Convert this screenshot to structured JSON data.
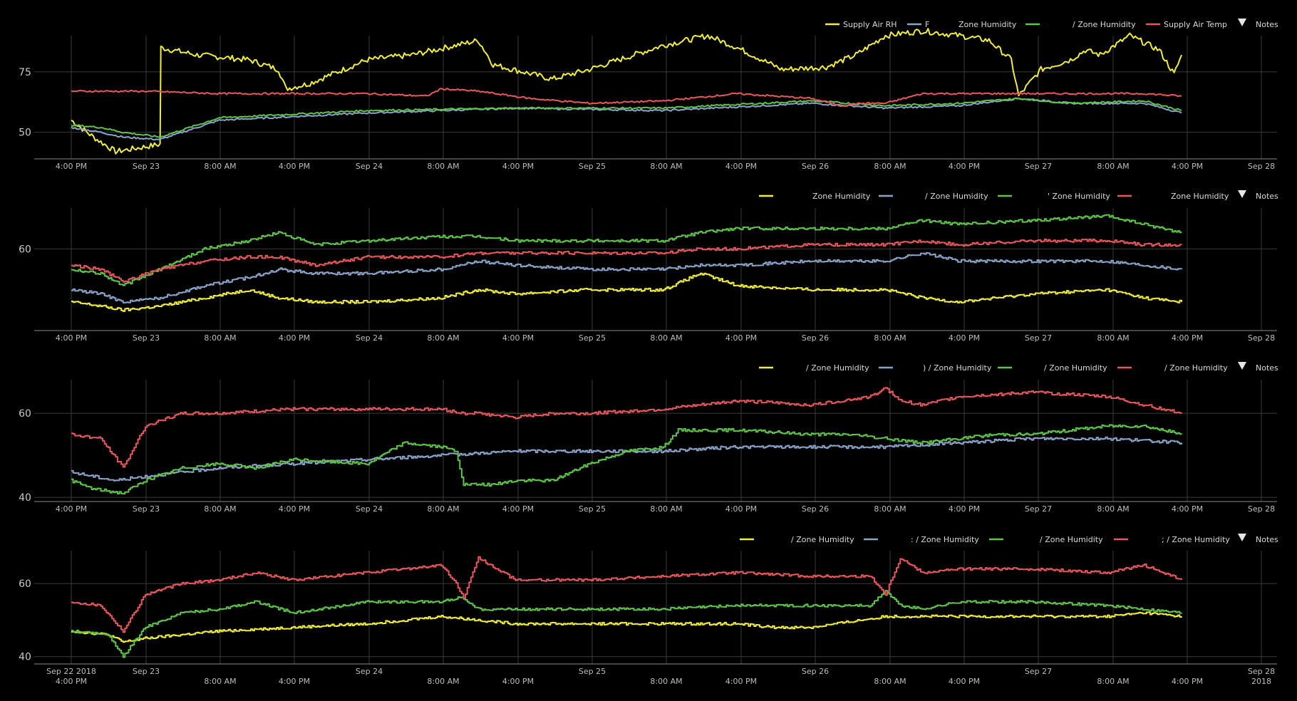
{
  "colors": {
    "background": "#000000",
    "grid": "#3a3a3a",
    "axis": "#8a8a8a",
    "yellow": "#f0ee3a",
    "blue": "#8aa3c8",
    "green": "#5fc44a",
    "red": "#e8575c",
    "text": "#d9d9d9"
  },
  "notes_label": "Notes",
  "x_ticks": {
    "top": [
      "4:00 PM",
      "Sep 23",
      "8:00 AM",
      "4:00 PM",
      "Sep 24",
      "8:00 AM",
      "4:00 PM",
      "Sep 25",
      "8:00 AM",
      "4:00 PM",
      "Sep 26",
      "8:00 AM",
      "4:00 PM",
      "Sep 27",
      "8:00 AM",
      "4:00 PM",
      "Sep 28"
    ],
    "bottom_line1": [
      "Sep 22 2018",
      "Sep 23",
      "",
      "",
      "Sep 24",
      "",
      "",
      "Sep 25",
      "",
      "",
      "Sep 26",
      "",
      "",
      "Sep 27",
      "",
      "",
      "Sep 28"
    ],
    "bottom_line2": [
      "4:00 PM",
      "",
      "8:00 AM",
      "4:00 PM",
      "",
      "8:00 AM",
      "4:00 PM",
      "",
      "8:00 AM",
      "4:00 PM",
      "",
      "8:00 AM",
      "4:00 PM",
      "",
      "8:00 AM",
      "4:00 PM",
      "2018"
    ]
  },
  "chart_data": [
    {
      "type": "line",
      "x_range": [
        "2018-09-22 13:00",
        "2018-09-28 00:00"
      ],
      "ylim": [
        39,
        90
      ],
      "yticks": [
        50,
        75
      ],
      "grid": true,
      "legend_position": "top-right",
      "legend": [
        {
          "color": "yellow",
          "label": "Supply Air RH"
        },
        {
          "color": "blue",
          "label": "F"
        },
        {
          "color": "",
          "label": "Zone Humidity"
        },
        {
          "color": "green",
          "label": ""
        },
        {
          "color": "",
          "label": "/ Zone Humidity"
        },
        {
          "color": "red",
          "label": "Supply Air Temp"
        }
      ],
      "series": [
        {
          "color": "yellow",
          "x": [
            0,
            3,
            6,
            12,
            12.1,
            17,
            24,
            28,
            29,
            32,
            40,
            46,
            55,
            57,
            65,
            70,
            80,
            86,
            90,
            96,
            102,
            106,
            108,
            110,
            115,
            120,
            124,
            127,
            128,
            131,
            135,
            137,
            139,
            142,
            143,
            147,
            149,
            150
          ],
          "y": [
            55,
            48,
            42,
            45,
            85,
            82,
            80,
            76,
            68,
            70,
            80,
            82,
            88,
            78,
            72,
            76,
            86,
            90,
            85,
            76,
            77,
            82,
            86,
            90,
            92,
            90,
            88,
            80,
            65,
            76,
            80,
            84,
            82,
            88,
            90,
            84,
            74,
            82
          ]
        },
        {
          "color": "blue",
          "x": [
            0,
            4,
            7,
            12,
            20,
            40,
            60,
            80,
            100,
            110,
            120,
            128,
            135,
            145,
            150
          ],
          "y": [
            52,
            50,
            48,
            47,
            55,
            58,
            60,
            59,
            62,
            60,
            61,
            64,
            62,
            62,
            58
          ]
        },
        {
          "color": "green",
          "x": [
            0,
            4,
            7,
            12,
            20,
            40,
            60,
            80,
            100,
            110,
            120,
            128,
            135,
            145,
            150
          ],
          "y": [
            53,
            52,
            50,
            48,
            56,
            59,
            60,
            60,
            63,
            61,
            62,
            64,
            62,
            63,
            59
          ]
        },
        {
          "color": "red",
          "x": [
            0,
            10,
            20,
            40,
            48,
            50,
            55,
            62,
            70,
            80,
            90,
            100,
            104,
            107,
            110,
            115,
            120,
            128,
            135,
            145,
            150
          ],
          "y": [
            67,
            67,
            66,
            66,
            65,
            68,
            67,
            64,
            62,
            63,
            66,
            64,
            61,
            62,
            62,
            66,
            66,
            66,
            66,
            66,
            65
          ]
        }
      ]
    },
    {
      "type": "line",
      "x_range": [
        "2018-09-22 13:00",
        "2018-09-28 00:00"
      ],
      "ylim": [
        40,
        70
      ],
      "yticks": [
        60
      ],
      "grid": true,
      "legend_position": "top-right",
      "legend": [
        {
          "color": "yellow",
          "label": "Zone Humidity"
        },
        {
          "color": "blue",
          "label": "/ Zone Humidity"
        },
        {
          "color": "green",
          "label": "' Zone Humidity"
        },
        {
          "color": "red",
          "label": "Zone Humidity"
        }
      ],
      "series": [
        {
          "color": "yellow",
          "x": [
            0,
            4,
            7,
            12,
            18,
            24,
            28,
            33,
            40,
            50,
            55,
            60,
            70,
            80,
            85,
            90,
            100,
            110,
            115,
            120,
            130,
            140,
            145,
            150
          ],
          "y": [
            47,
            46,
            45,
            46,
            48,
            50,
            48,
            47,
            47,
            48,
            50,
            49,
            50,
            50,
            54,
            51,
            50,
            50,
            48,
            47,
            49,
            50,
            48,
            47
          ]
        },
        {
          "color": "blue",
          "x": [
            0,
            4,
            7,
            12,
            18,
            24,
            28,
            33,
            40,
            50,
            55,
            60,
            70,
            80,
            85,
            90,
            100,
            110,
            115,
            120,
            130,
            140,
            145,
            150
          ],
          "y": [
            50,
            49,
            47,
            48,
            51,
            53,
            55,
            54,
            54,
            55,
            57,
            56,
            55,
            55,
            56,
            56,
            57,
            57,
            59,
            57,
            57,
            57,
            56,
            55
          ]
        },
        {
          "color": "green",
          "x": [
            0,
            4,
            7,
            12,
            18,
            24,
            28,
            33,
            40,
            50,
            55,
            60,
            70,
            80,
            85,
            90,
            100,
            110,
            115,
            120,
            130,
            140,
            145,
            150
          ],
          "y": [
            55,
            54,
            51,
            55,
            60,
            62,
            64,
            61,
            62,
            63,
            63,
            62,
            62,
            62,
            64,
            65,
            65,
            65,
            67,
            66,
            67,
            68,
            66,
            64
          ]
        },
        {
          "color": "red",
          "x": [
            0,
            4,
            7,
            12,
            18,
            24,
            28,
            33,
            40,
            50,
            55,
            60,
            70,
            80,
            85,
            90,
            100,
            110,
            115,
            120,
            130,
            140,
            145,
            150
          ],
          "y": [
            56,
            55,
            52,
            55,
            57,
            58,
            58,
            56,
            58,
            58,
            59,
            59,
            59,
            59,
            60,
            60,
            61,
            61,
            62,
            61,
            62,
            62,
            61,
            61
          ]
        }
      ]
    },
    {
      "type": "line",
      "x_range": [
        "2018-09-22 13:00",
        "2018-09-28 00:00"
      ],
      "ylim": [
        39,
        68
      ],
      "yticks": [
        40,
        60
      ],
      "grid": true,
      "legend_position": "top-right",
      "legend": [
        {
          "color": "yellow",
          "label": "/ Zone Humidity"
        },
        {
          "color": "blue",
          "label": ") / Zone Humidity"
        },
        {
          "color": "green",
          "label": "/ Zone Humidity"
        },
        {
          "color": "red",
          "label": "/ Zone Humidity"
        }
      ],
      "series": [
        {
          "color": "blue",
          "x": [
            0,
            6,
            10,
            20,
            30,
            40,
            50,
            60,
            70,
            80,
            90,
            100,
            110,
            120,
            130,
            140,
            150
          ],
          "y": [
            46,
            44,
            45,
            47,
            48,
            49,
            50,
            51,
            51,
            51,
            52,
            52,
            52,
            53,
            54,
            54,
            53
          ]
        },
        {
          "color": "green",
          "x": [
            0,
            3,
            7,
            10,
            15,
            20,
            25,
            30,
            40,
            45,
            50,
            52,
            53,
            57,
            60,
            65,
            70,
            75,
            80,
            82,
            90,
            100,
            105,
            110,
            115,
            120,
            125,
            130,
            140,
            145,
            150
          ],
          "y": [
            44,
            42,
            41,
            44,
            47,
            48,
            47,
            49,
            48,
            53,
            52,
            51,
            43,
            43,
            44,
            44,
            48,
            51,
            52,
            56,
            56,
            55,
            55,
            54,
            53,
            54,
            55,
            55,
            57,
            57,
            55
          ]
        },
        {
          "color": "red",
          "x": [
            0,
            4,
            7,
            10,
            15,
            20,
            30,
            40,
            50,
            53,
            55,
            60,
            65,
            70,
            80,
            90,
            100,
            108,
            110,
            112,
            115,
            120,
            130,
            140,
            145,
            150
          ],
          "y": [
            55,
            54,
            47,
            57,
            60,
            60,
            61,
            61,
            61,
            60,
            60,
            59,
            60,
            60,
            61,
            63,
            62,
            64,
            66,
            63,
            62,
            64,
            65,
            64,
            62,
            60
          ]
        }
      ]
    },
    {
      "type": "line",
      "x_range": [
        "2018-09-22 13:00",
        "2018-09-28 00:00"
      ],
      "ylim": [
        38,
        69
      ],
      "yticks": [
        40,
        60
      ],
      "grid": true,
      "legend_position": "top-right",
      "legend": [
        {
          "color": "yellow",
          "label": "/ Zone Humidity"
        },
        {
          "color": "blue",
          "label": ": / Zone Humidity"
        },
        {
          "color": "green",
          "label": "/ Zone Humidity"
        },
        {
          "color": "red",
          "label": "; / Zone Humidity"
        }
      ],
      "series": [
        {
          "color": "yellow",
          "x": [
            0,
            5,
            7,
            10,
            20,
            30,
            40,
            50,
            55,
            60,
            70,
            80,
            90,
            95,
            100,
            110,
            120,
            130,
            140,
            145,
            150
          ],
          "y": [
            47,
            46,
            44,
            45,
            47,
            48,
            49,
            51,
            50,
            49,
            49,
            49,
            49,
            48,
            48,
            51,
            51,
            51,
            51,
            52,
            51
          ]
        },
        {
          "color": "green",
          "x": [
            0,
            5,
            7,
            10,
            15,
            20,
            25,
            30,
            40,
            50,
            52,
            53,
            55,
            60,
            70,
            80,
            90,
            100,
            108,
            110,
            112,
            115,
            120,
            130,
            140,
            145,
            150
          ],
          "y": [
            47,
            46,
            40,
            48,
            52,
            53,
            55,
            52,
            55,
            55,
            56,
            56,
            53,
            53,
            53,
            53,
            54,
            54,
            54,
            58,
            54,
            53,
            55,
            55,
            54,
            53,
            52
          ]
        },
        {
          "color": "red",
          "x": [
            0,
            4,
            7,
            10,
            15,
            20,
            25,
            30,
            40,
            50,
            52,
            53,
            55,
            60,
            70,
            80,
            90,
            100,
            108,
            110,
            112,
            115,
            120,
            130,
            140,
            145,
            150
          ],
          "y": [
            55,
            54,
            47,
            57,
            60,
            61,
            63,
            61,
            63,
            65,
            60,
            56,
            67,
            61,
            61,
            62,
            63,
            62,
            62,
            57,
            67,
            63,
            64,
            64,
            63,
            65,
            61
          ]
        }
      ]
    }
  ]
}
